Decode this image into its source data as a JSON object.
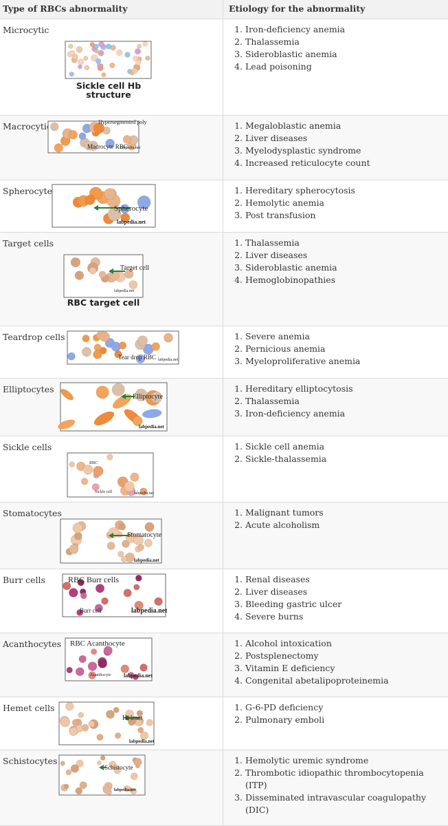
{
  "header": [
    "Type of RBCs abnormality",
    "Etiology for the abnormality"
  ],
  "rows": [
    {
      "type": "Microcytic",
      "image": {
        "labels": [],
        "caption": "Sickle cell Hb structure"
      },
      "etiology": [
        "Iron-deficiency anemia",
        "Thalassemia",
        "Sideroblastic anemia",
        "Lead poisoning"
      ]
    },
    {
      "type": "Macrocytic",
      "image": {
        "labels": [
          "Hypersegmented poly",
          "Macrocyte RBC",
          "labpedia.net"
        ]
      },
      "etiology": [
        "Megaloblastic anemia",
        "Liver diseases",
        "Myelodysplastic syndrome",
        "Increased reticulocyte count"
      ]
    },
    {
      "type": "Spherocytes",
      "image": {
        "labels": [
          "Spherocyte",
          "labpedia.net"
        ]
      },
      "etiology": [
        "Hereditary spherocytosis",
        "Hemolytic anemia",
        "Post transfusion"
      ]
    },
    {
      "type": "Target cells",
      "image": {
        "labels": [
          "Target cell",
          "labpedia.net"
        ],
        "caption": "RBC target cell"
      },
      "etiology": [
        "Thalassemia",
        "Liver diseases",
        "Sideroblastic anemia",
        "Hemoglobinopathies"
      ]
    },
    {
      "type": "Teardrop cells",
      "image": {
        "labels": [
          "Tear drop RBC",
          "labpedia.net"
        ]
      },
      "etiology": [
        "Severe anemia",
        "Pernicious anemia",
        "Myeloproliferative anemia"
      ]
    },
    {
      "type": "Elliptocytes",
      "image": {
        "labels": [
          "Elliptocyte",
          "labpedia.net"
        ]
      },
      "etiology": [
        "Hereditary elliptocytosis",
        "Thalassemia",
        "Iron-deficiency anemia"
      ]
    },
    {
      "type": "Sickle cells",
      "image": {
        "labels": [
          "RBC",
          "Sickle cell",
          "labpedia.net"
        ]
      },
      "etiology": [
        "Sickle cell anemia",
        "Sickle-thalassemia"
      ]
    },
    {
      "type": "Stomatocytes",
      "image": {
        "labels": [
          "Stomatocyte",
          "labpedia.net"
        ]
      },
      "etiology": [
        "Malignant tumors",
        "Acute alcoholism"
      ]
    },
    {
      "type": "Burr cells",
      "image": {
        "labels": [
          "RBC Burr cells",
          "Burr cell",
          "labpedia.net"
        ]
      },
      "etiology": [
        "Renal diseases",
        "Liver diseases",
        "Bleeding gastric ulcer",
        "Severe burns"
      ]
    },
    {
      "type": "Acanthocytes",
      "image": {
        "labels": [
          "RBC Acanthocyte",
          "Acanthocyte",
          "labpedia.net"
        ]
      },
      "etiology": [
        "Alcohol intoxication",
        "Postsplenectomy",
        "Vitamin E deficiency",
        "Congenital abetalipoproteinemia"
      ]
    },
    {
      "type": "Hemet cells",
      "image": {
        "labels": [
          "Helmet",
          "labpedia.net"
        ]
      },
      "etiology": [
        "G-6-PD deficiency",
        "Pulmonary emboli"
      ]
    },
    {
      "type": "Schistocytes",
      "image": {
        "labels": [
          "Schistocyte",
          "labpedia.net"
        ]
      },
      "etiology": [
        "Hemolytic uremic syndrome",
        "Thrombotic idiopathic thrombocytopenia (ITP)",
        "Disseminated intravascular coagulopathy (DIC)"
      ]
    }
  ]
}
